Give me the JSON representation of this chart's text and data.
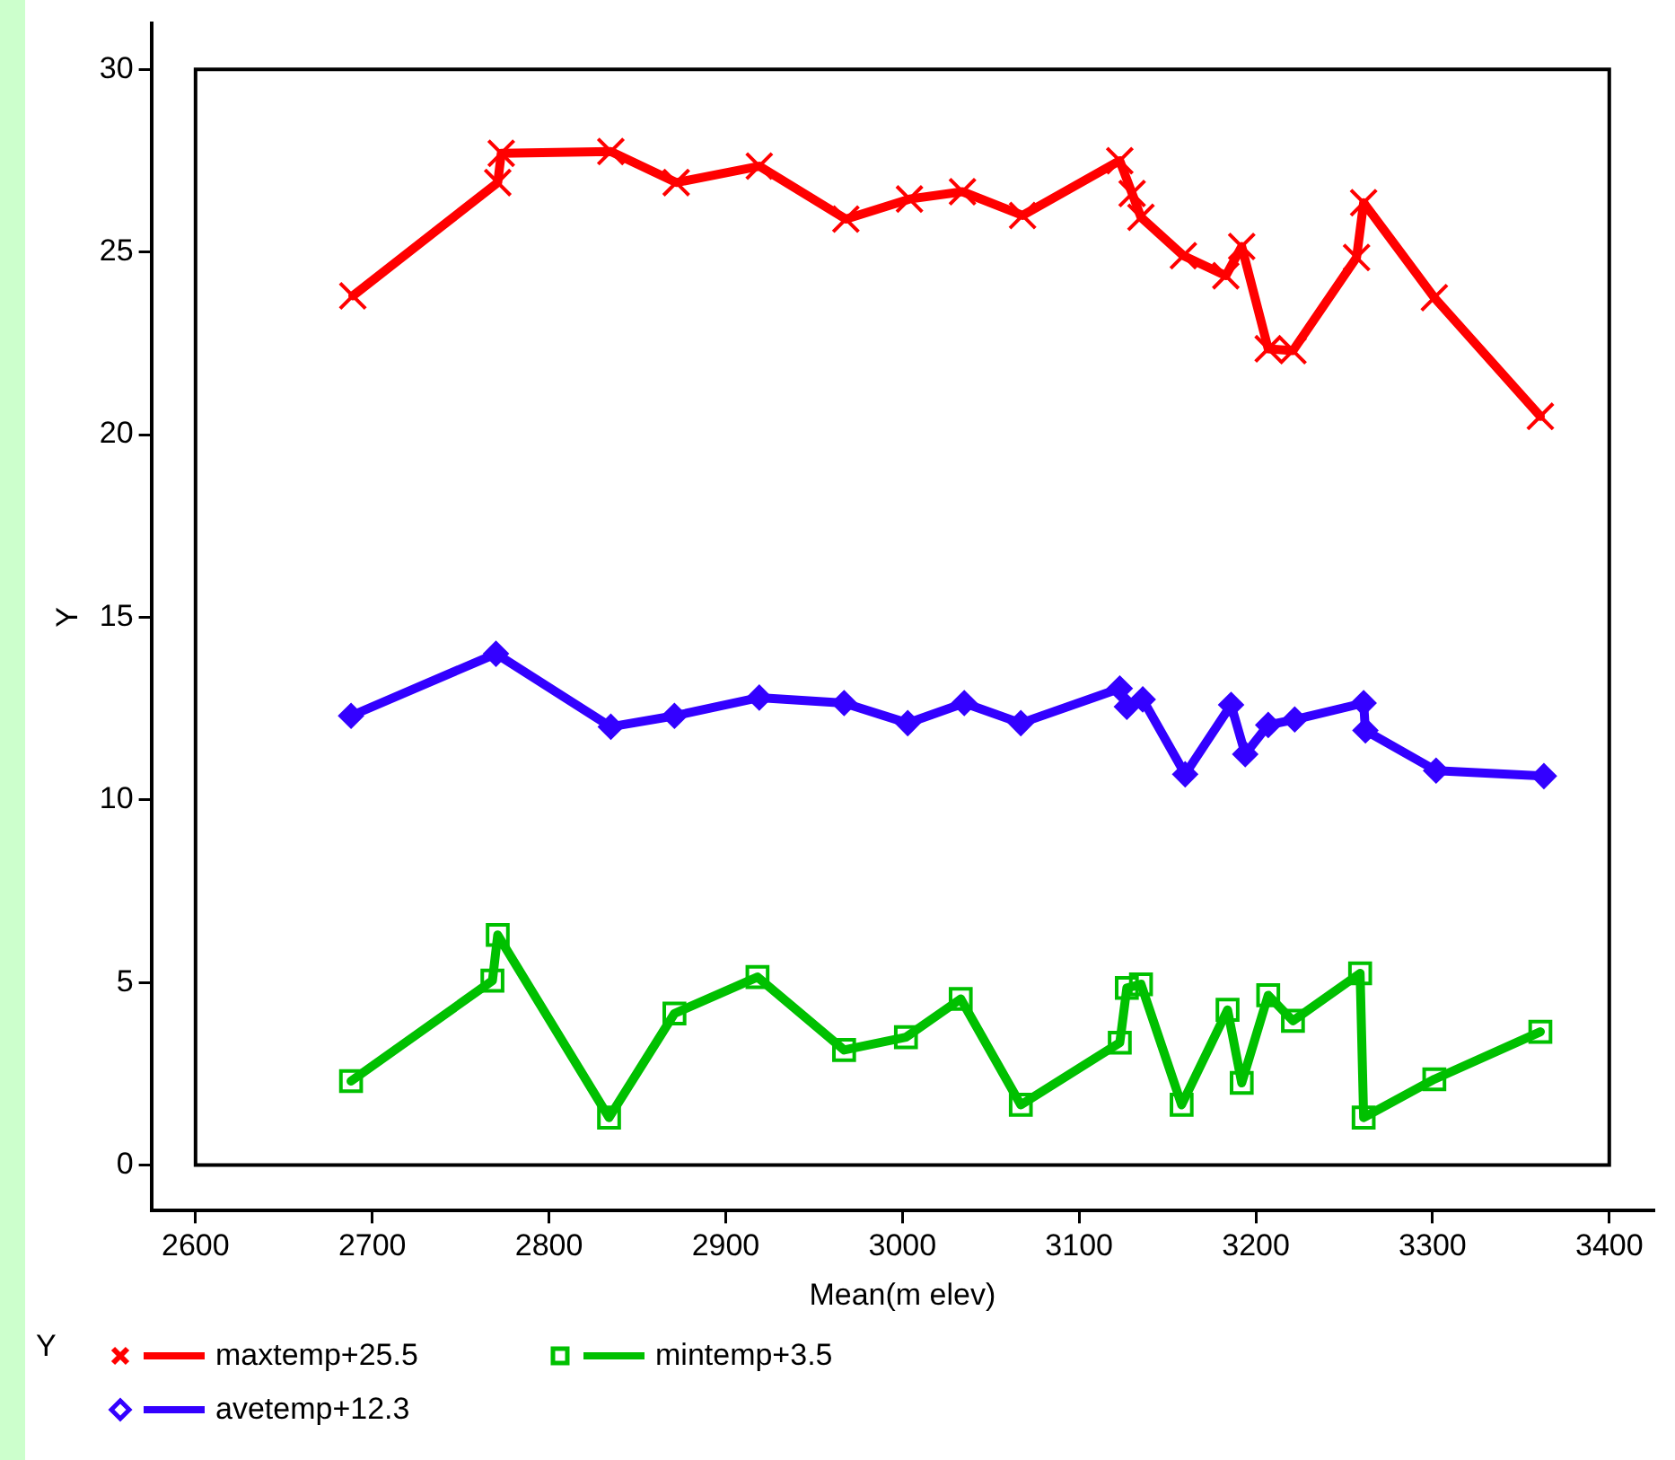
{
  "chart_data": {
    "type": "line",
    "xlabel": "Mean(m elev)",
    "ylabel": "Y",
    "legend_title": "Y",
    "legend": "bottom",
    "grid": false,
    "line_style": "solid",
    "xlim": [
      2575,
      3425
    ],
    "xticks": [
      2600,
      2700,
      2800,
      2900,
      3000,
      3100,
      3200,
      3300,
      3400
    ],
    "ylim": [
      -1.25,
      31.25
    ],
    "yticks": [
      0,
      5,
      10,
      15,
      20,
      25,
      30
    ],
    "series": [
      {
        "name": "maxtemp+25.5",
        "color": "#ff0000",
        "marker": "cross",
        "x": [
          2689,
          2771,
          2773,
          2835,
          2872,
          2919,
          2968,
          3004,
          3034,
          3068,
          3123,
          3130,
          3135,
          3159,
          3183,
          3192,
          3207,
          3221,
          3257,
          3261,
          3301,
          3361
        ],
        "values": [
          23.8,
          26.9,
          27.7,
          27.75,
          26.9,
          27.35,
          25.9,
          26.45,
          26.65,
          26.0,
          27.5,
          26.6,
          25.95,
          24.9,
          24.35,
          25.15,
          22.35,
          22.3,
          24.85,
          26.35,
          23.75,
          20.5
        ]
      },
      {
        "name": "mintemp+3.5",
        "color": "#00c000",
        "marker": "square",
        "x": [
          2688,
          2768,
          2771,
          2834,
          2871,
          2918,
          2967,
          3002,
          3033,
          3067,
          3123,
          3127,
          3135,
          3158,
          3184,
          3192,
          3207,
          3221,
          3259,
          3261,
          3301,
          3361
        ],
        "values": [
          2.3,
          5.05,
          6.3,
          1.3,
          4.15,
          5.15,
          3.15,
          3.5,
          4.55,
          1.65,
          3.35,
          4.85,
          4.95,
          1.65,
          4.25,
          2.25,
          4.65,
          3.95,
          5.25,
          1.3,
          2.35,
          3.65
        ]
      },
      {
        "name": "avetemp+12.3",
        "color": "#3300ff",
        "marker": "diamond",
        "x": [
          2688,
          2770,
          2835,
          2871,
          2919,
          2967,
          3003,
          3035,
          3067,
          3123,
          3127,
          3136,
          3160,
          3186,
          3194,
          3207,
          3222,
          3261,
          3262,
          3302,
          3363
        ],
        "values": [
          12.3,
          14.0,
          12.0,
          12.3,
          12.8,
          12.65,
          12.1,
          12.65,
          12.1,
          13.05,
          12.55,
          12.75,
          10.7,
          12.6,
          11.25,
          12.05,
          12.2,
          12.65,
          11.9,
          10.8,
          10.65
        ]
      }
    ]
  }
}
